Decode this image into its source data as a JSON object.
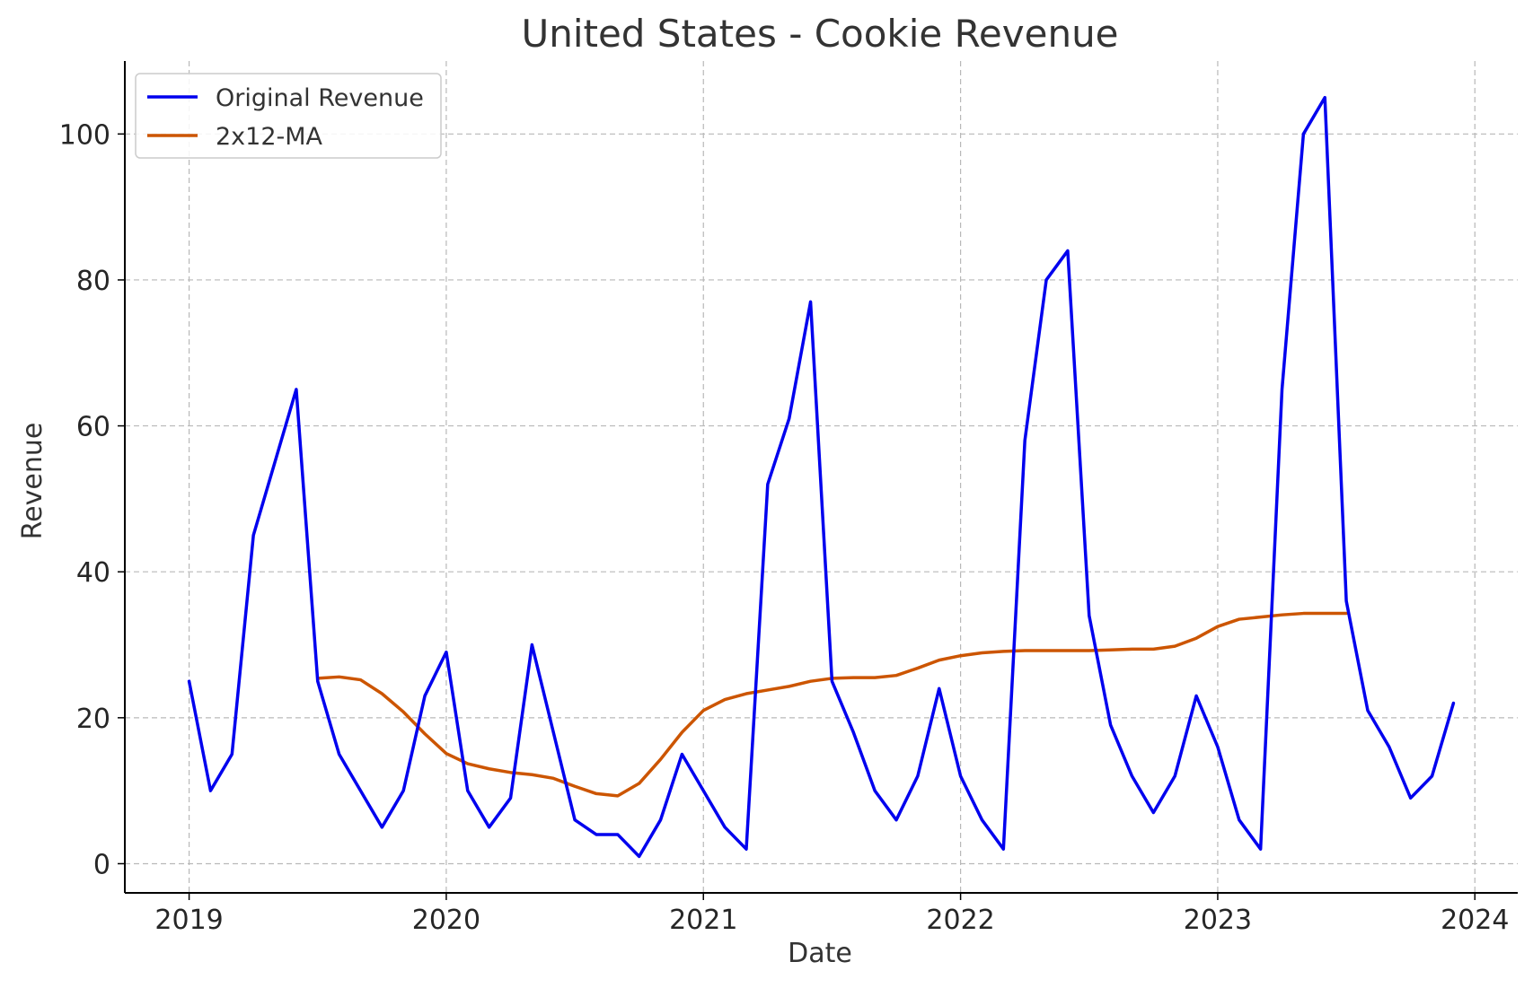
{
  "chart_data": {
    "type": "line",
    "title": "United States - Cookie Revenue",
    "xlabel": "Date",
    "ylabel": "Revenue",
    "x_axis_type": "date",
    "xlim": [
      "2018-10-01",
      "2024-03-01"
    ],
    "ylim": [
      -4,
      110
    ],
    "x_ticks": [
      "2019",
      "2020",
      "2021",
      "2022",
      "2023",
      "2024"
    ],
    "y_ticks": [
      0,
      20,
      40,
      60,
      80,
      100
    ],
    "grid": true,
    "legend_position": "top-left",
    "series": [
      {
        "name": "Original Revenue",
        "color": "#0000ee",
        "x": [
          "2019-01",
          "2019-02",
          "2019-03",
          "2019-04",
          "2019-05",
          "2019-06",
          "2019-07",
          "2019-08",
          "2019-09",
          "2019-10",
          "2019-11",
          "2019-12",
          "2020-01",
          "2020-02",
          "2020-03",
          "2020-04",
          "2020-05",
          "2020-06",
          "2020-07",
          "2020-08",
          "2020-09",
          "2020-10",
          "2020-11",
          "2020-12",
          "2021-01",
          "2021-02",
          "2021-03",
          "2021-04",
          "2021-05",
          "2021-06",
          "2021-07",
          "2021-08",
          "2021-09",
          "2021-10",
          "2021-11",
          "2021-12",
          "2022-01",
          "2022-02",
          "2022-03",
          "2022-04",
          "2022-05",
          "2022-06",
          "2022-07",
          "2022-08",
          "2022-09",
          "2022-10",
          "2022-11",
          "2022-12",
          "2023-01",
          "2023-02",
          "2023-03",
          "2023-04",
          "2023-05",
          "2023-06",
          "2023-07",
          "2023-08",
          "2023-09",
          "2023-10",
          "2023-11",
          "2023-12"
        ],
        "values": [
          25,
          10,
          15,
          45,
          55,
          65,
          25,
          15,
          10,
          5,
          10,
          23,
          29,
          10,
          5,
          9,
          30,
          18,
          6,
          4,
          4,
          1,
          6,
          15,
          10,
          5,
          2,
          52,
          61,
          77,
          25,
          18,
          10,
          6,
          12,
          24,
          12,
          6,
          2,
          58,
          80,
          84,
          34,
          19,
          12,
          7,
          12,
          23,
          16,
          6,
          2,
          65,
          100,
          105,
          36,
          21,
          16,
          9,
          12,
          22
        ]
      },
      {
        "name": "2x12-MA",
        "color": "#cc5500",
        "x": [
          "2019-07",
          "2019-08",
          "2019-09",
          "2019-10",
          "2019-11",
          "2019-12",
          "2020-01",
          "2020-02",
          "2020-03",
          "2020-04",
          "2020-05",
          "2020-06",
          "2020-07",
          "2020-08",
          "2020-09",
          "2020-10",
          "2020-11",
          "2020-12",
          "2021-01",
          "2021-02",
          "2021-03",
          "2021-04",
          "2021-05",
          "2021-06",
          "2021-07",
          "2021-08",
          "2021-09",
          "2021-10",
          "2021-11",
          "2021-12",
          "2022-01",
          "2022-02",
          "2022-03",
          "2022-04",
          "2022-05",
          "2022-06",
          "2022-07",
          "2022-08",
          "2022-09",
          "2022-10",
          "2022-11",
          "2022-12",
          "2023-01",
          "2023-02",
          "2023-03",
          "2023-04",
          "2023-05",
          "2023-06",
          "2023-07"
        ],
        "values": [
          25.4,
          25.6,
          25.2,
          23.3,
          20.8,
          17.8,
          15.1,
          13.7,
          13.0,
          12.5,
          12.2,
          11.7,
          10.6,
          9.6,
          9.3,
          11.0,
          14.3,
          18.0,
          21.0,
          22.5,
          23.3,
          23.8,
          24.3,
          25.0,
          25.4,
          25.5,
          25.5,
          25.8,
          26.8,
          27.9,
          28.5,
          28.9,
          29.1,
          29.2,
          29.2,
          29.2,
          29.2,
          29.3,
          29.4,
          29.4,
          29.8,
          30.9,
          32.5,
          33.5,
          33.8,
          34.1,
          34.3,
          34.3,
          34.3
        ]
      }
    ]
  }
}
